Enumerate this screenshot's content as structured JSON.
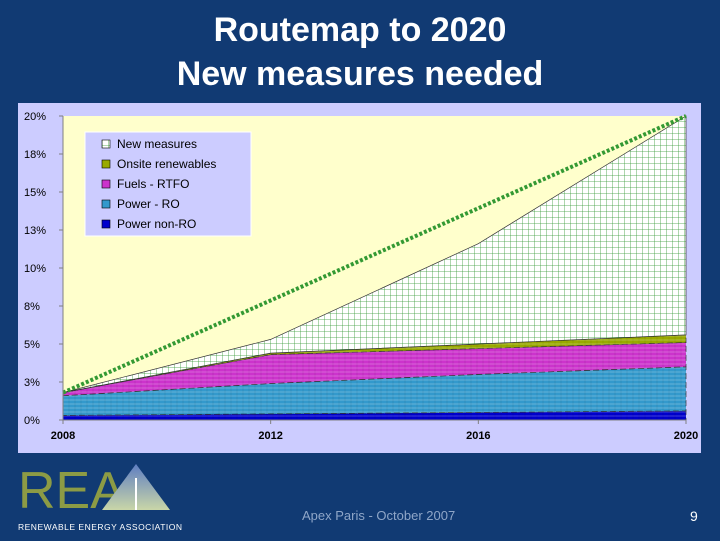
{
  "slide": {
    "title_line1": "Routemap to 2020",
    "title_line2": "New measures needed",
    "footer": "Apex Paris - October 2007",
    "page_number": "9"
  },
  "logo": {
    "letters": "REA",
    "tagline": "RENEWABLE ENERGY ASSOCIATION",
    "colors": {
      "letters": "#8c9b45",
      "tagline": "#ffffff"
    }
  },
  "chart_data": {
    "type": "area",
    "stacked": true,
    "title": "",
    "xlabel": "",
    "ylabel": "",
    "x_ticks": [
      "2008",
      "2012",
      "2016",
      "2020"
    ],
    "y_ticks": [
      "0%",
      "3%",
      "5%",
      "8%",
      "10%",
      "13%",
      "15%",
      "18%",
      "20%"
    ],
    "xlim": [
      2008,
      2020
    ],
    "ylim": [
      0,
      20
    ],
    "grid": false,
    "legend_position": "top-left",
    "background": "#ffffcc",
    "plot_bg": "#ccccff",
    "x": [
      2008,
      2012,
      2016,
      2020
    ],
    "series": [
      {
        "name": "Power non-RO",
        "color": "#0000cc",
        "values": [
          0.3,
          0.4,
          0.5,
          0.6
        ]
      },
      {
        "name": "Power - RO",
        "color": "#3399cc",
        "values": [
          1.3,
          2.0,
          2.5,
          2.9
        ]
      },
      {
        "name": "Fuels - RTFO",
        "color": "#cc33cc",
        "values": [
          0.2,
          1.9,
          1.7,
          1.6
        ]
      },
      {
        "name": "Onsite renewables",
        "color": "#99aa00",
        "values": [
          0.0,
          0.1,
          0.3,
          0.5
        ]
      },
      {
        "name": "New measures",
        "color": "#ffffff",
        "hatch": "#339933",
        "values": [
          0.0,
          0.9,
          6.6,
          14.4
        ]
      }
    ],
    "target_line": {
      "color": "#339933",
      "style": "dotted",
      "x": [
        2008,
        2020
      ],
      "y": [
        1.8,
        20
      ]
    }
  }
}
